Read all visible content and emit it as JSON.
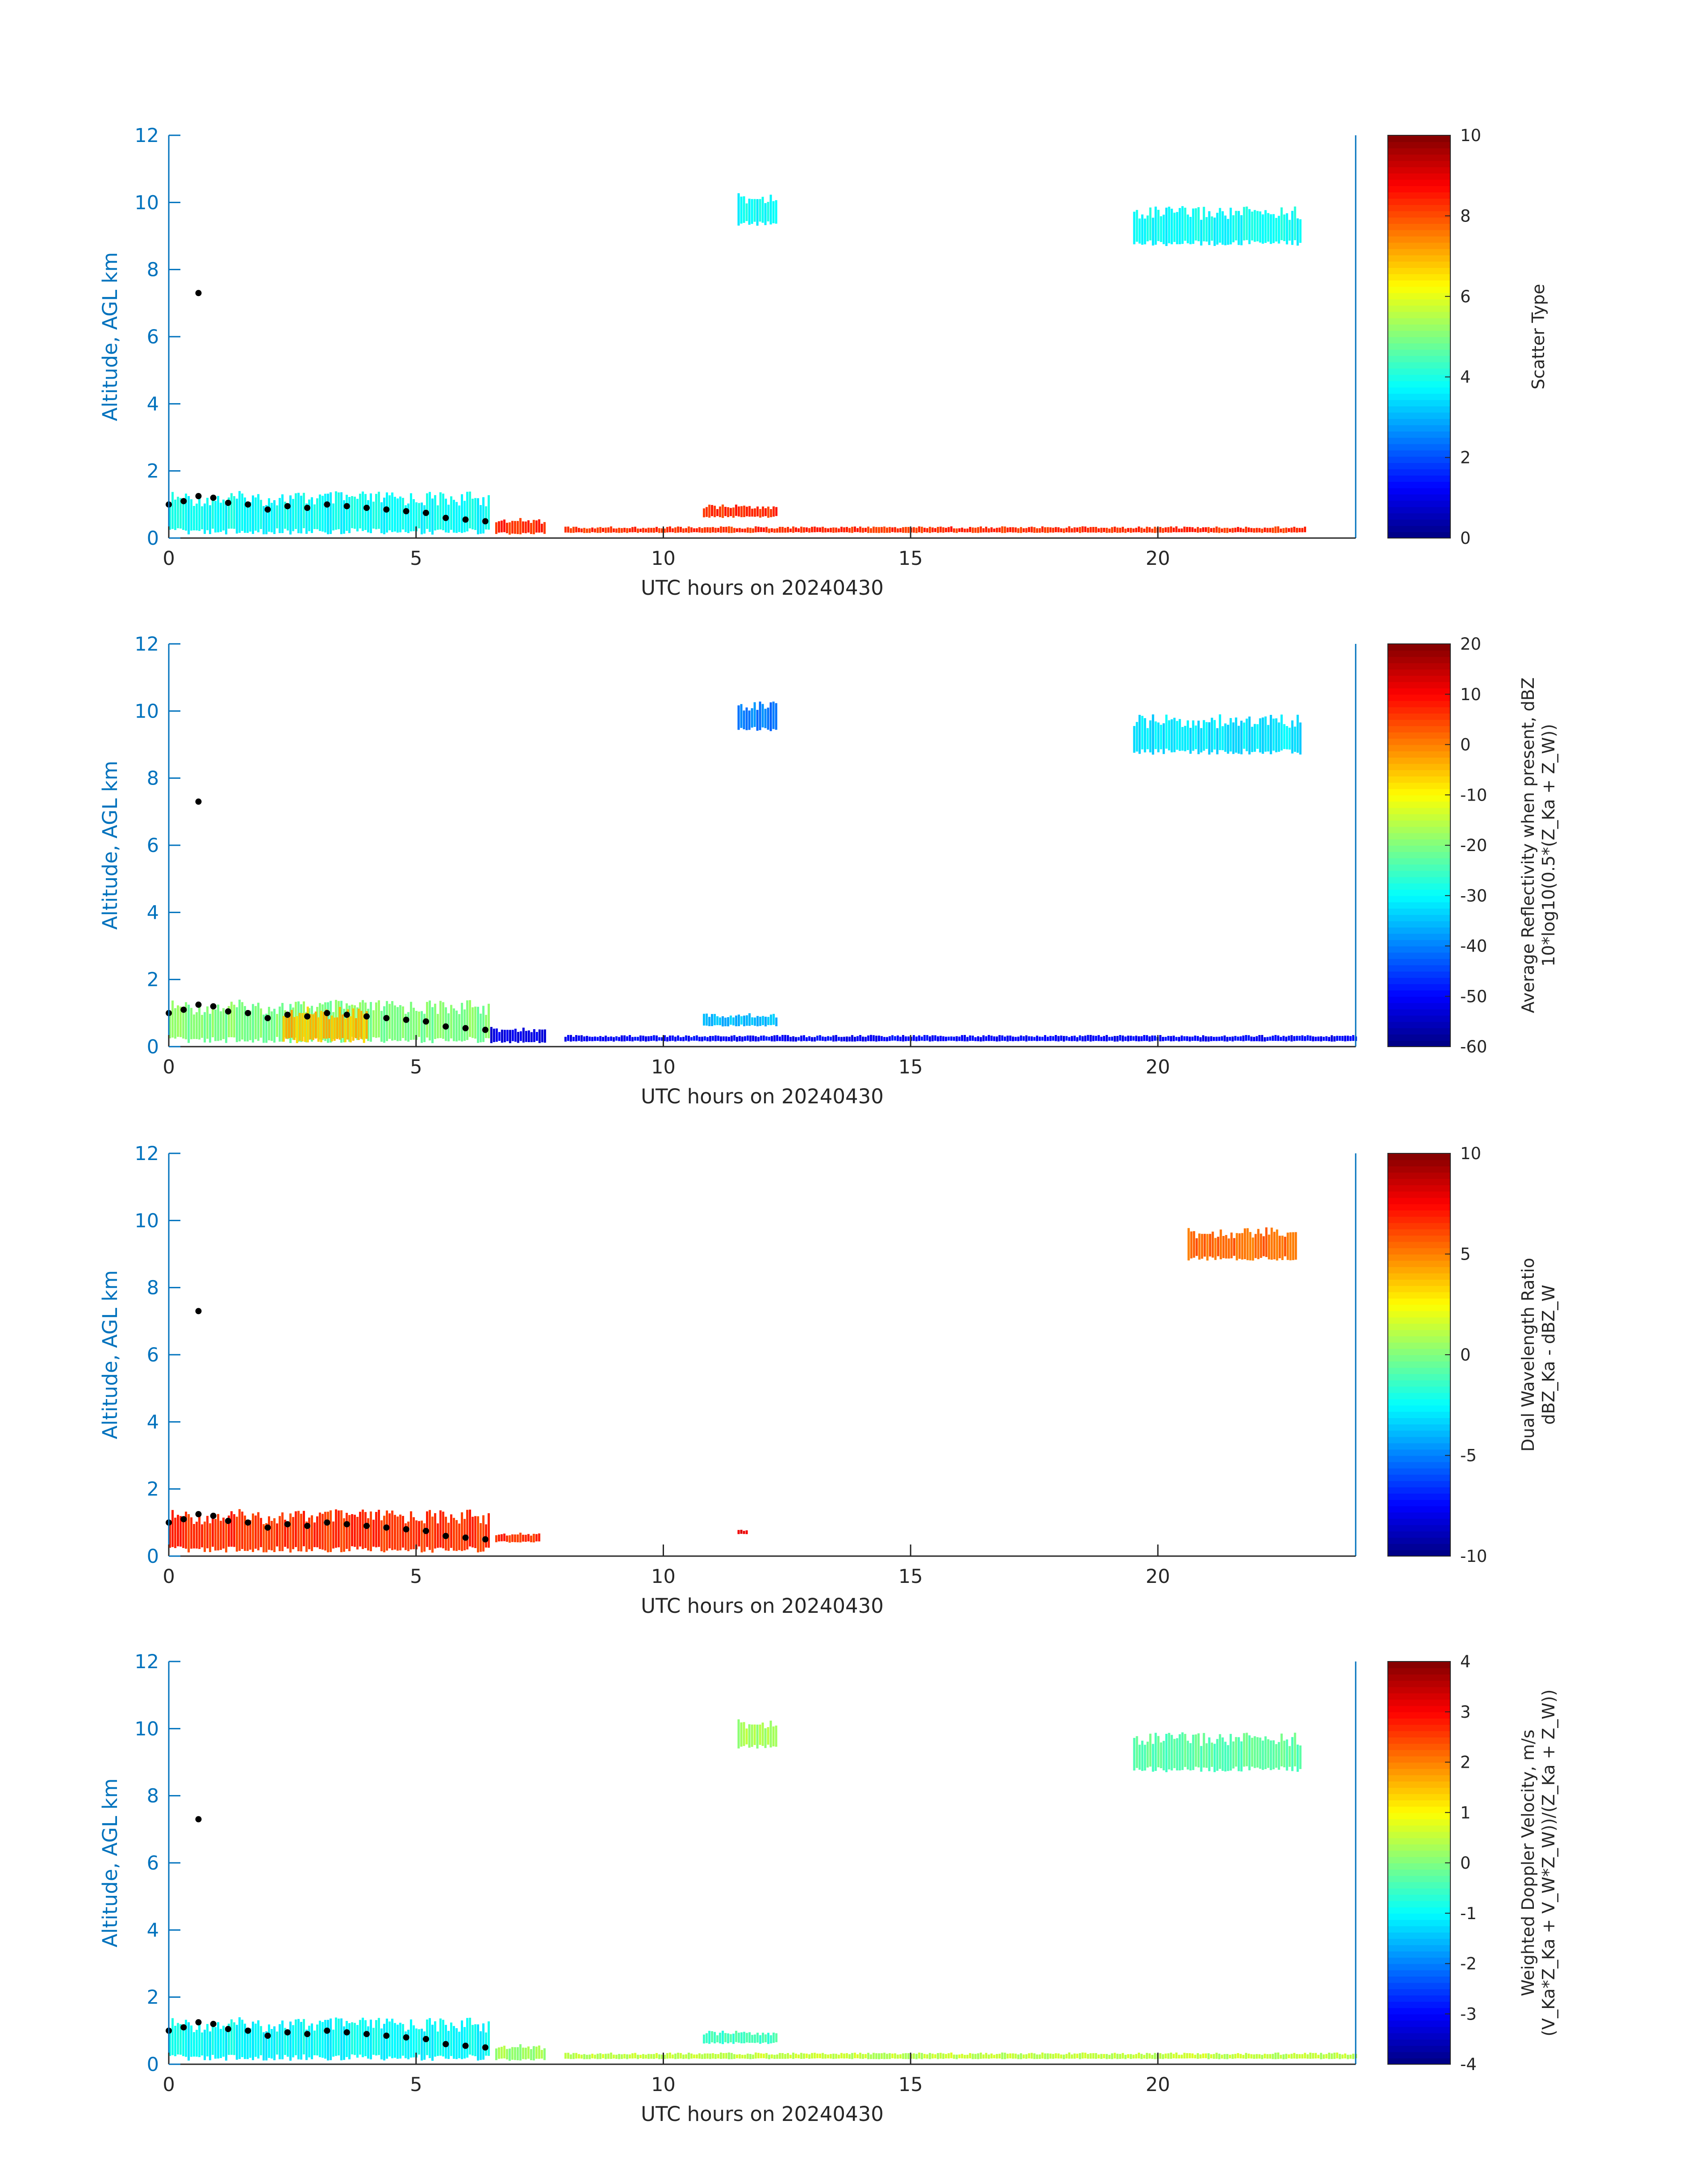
{
  "chart_data": [
    {
      "type": "heatmap",
      "panel": "scatter-type",
      "xlabel": "UTC hours on 20240430",
      "ylabel": "Altitude, AGL km",
      "xlim": [
        0,
        24
      ],
      "ylim": [
        0,
        12
      ],
      "xticks": [
        0,
        5,
        10,
        15,
        20
      ],
      "yticks": [
        0,
        2,
        4,
        6,
        8,
        10,
        12
      ],
      "colorbar": {
        "label": [
          "Scatter Type"
        ],
        "range": [
          0,
          10
        ],
        "ticks": [
          0,
          2,
          4,
          6,
          8,
          10
        ]
      },
      "cloud_top_marker": {
        "x": 0.6,
        "y": 7.3
      },
      "regions": [
        {
          "t0": 0.0,
          "t1": 6.5,
          "z0": 0.1,
          "z1": 1.4,
          "value": 3.8
        },
        {
          "t0": 6.6,
          "t1": 7.6,
          "z0": 0.1,
          "z1": 0.6,
          "value": 8.3
        },
        {
          "t0": 11.5,
          "t1": 12.3,
          "z0": 9.3,
          "z1": 10.3,
          "value": 3.8
        },
        {
          "t0": 19.5,
          "t1": 22.9,
          "z0": 8.7,
          "z1": 9.9,
          "value": 3.8
        },
        {
          "t0": 10.8,
          "t1": 12.3,
          "z0": 0.6,
          "z1": 1.0,
          "value": 8.3
        },
        {
          "t0": 8.0,
          "t1": 23.0,
          "z0": 0.15,
          "z1": 0.35,
          "value": 8.3
        }
      ],
      "bl_top_series": {
        "x": [
          0.0,
          0.3,
          0.6,
          0.9,
          1.2,
          1.6,
          2.0,
          2.4,
          2.8,
          3.2,
          3.6,
          4.0,
          4.4,
          4.8,
          5.2,
          5.6,
          6.0,
          6.4
        ],
        "y": [
          1.0,
          1.1,
          1.25,
          1.2,
          1.05,
          1.0,
          0.85,
          0.95,
          0.9,
          1.0,
          0.95,
          0.9,
          0.85,
          0.8,
          0.75,
          0.6,
          0.55,
          0.5
        ]
      }
    },
    {
      "type": "heatmap",
      "panel": "average-reflectivity",
      "xlabel": "UTC hours on 20240430",
      "ylabel": "Altitude, AGL km",
      "xlim": [
        0,
        24
      ],
      "ylim": [
        0,
        12
      ],
      "xticks": [
        0,
        5,
        10,
        15,
        20
      ],
      "yticks": [
        0,
        2,
        4,
        6,
        8,
        10,
        12
      ],
      "colorbar": {
        "label": [
          "Average Reflectivity when present, dBZ",
          "10*log10(0.5*(Z_Ka + Z_W))"
        ],
        "range": [
          -60,
          20
        ],
        "ticks": [
          -60,
          -50,
          -40,
          -30,
          -20,
          -10,
          0,
          10,
          20
        ]
      },
      "cloud_top_marker": {
        "x": 0.6,
        "y": 7.3
      },
      "regions": [
        {
          "t0": 0.0,
          "t1": 6.5,
          "z0": 0.1,
          "z1": 1.4,
          "value": -20
        },
        {
          "t0": 2.3,
          "t1": 4.0,
          "z0": 0.1,
          "z1": 1.2,
          "value": -5
        },
        {
          "t0": 6.5,
          "t1": 7.6,
          "z0": 0.1,
          "z1": 0.6,
          "value": -52
        },
        {
          "t0": 11.5,
          "t1": 12.3,
          "z0": 9.4,
          "z1": 10.3,
          "value": -40
        },
        {
          "t0": 19.5,
          "t1": 22.9,
          "z0": 8.7,
          "z1": 9.9,
          "value": -32
        },
        {
          "t0": 10.8,
          "t1": 12.3,
          "z0": 0.6,
          "z1": 1.0,
          "value": -35
        },
        {
          "t0": 8.0,
          "t1": 24.0,
          "z0": 0.15,
          "z1": 0.35,
          "value": -50
        }
      ],
      "bl_top_series": {
        "x": [
          0.0,
          0.3,
          0.6,
          0.9,
          1.2,
          1.6,
          2.0,
          2.4,
          2.8,
          3.2,
          3.6,
          4.0,
          4.4,
          4.8,
          5.2,
          5.6,
          6.0,
          6.4
        ],
        "y": [
          1.0,
          1.1,
          1.25,
          1.2,
          1.05,
          1.0,
          0.85,
          0.95,
          0.9,
          1.0,
          0.95,
          0.9,
          0.85,
          0.8,
          0.75,
          0.6,
          0.55,
          0.5
        ]
      }
    },
    {
      "type": "heatmap",
      "panel": "dual-wavelength-ratio",
      "xlabel": "UTC hours on 20240430",
      "ylabel": "Altitude, AGL km",
      "xlim": [
        0,
        24
      ],
      "ylim": [
        0,
        12
      ],
      "xticks": [
        0,
        5,
        10,
        15,
        20
      ],
      "yticks": [
        0,
        2,
        4,
        6,
        8,
        10,
        12
      ],
      "colorbar": {
        "label": [
          "Dual Wavelength Ratio",
          "dBZ_Ka - dBZ_W"
        ],
        "range": [
          -10,
          10
        ],
        "ticks": [
          -10,
          -5,
          0,
          5,
          10
        ]
      },
      "cloud_top_marker": {
        "x": 0.6,
        "y": 7.3
      },
      "regions": [
        {
          "t0": 0.0,
          "t1": 6.5,
          "z0": 0.1,
          "z1": 1.4,
          "value": 6.5
        },
        {
          "t0": 6.6,
          "t1": 7.5,
          "z0": 0.4,
          "z1": 0.7,
          "value": 6.5
        },
        {
          "t0": 20.6,
          "t1": 22.8,
          "z0": 8.8,
          "z1": 9.8,
          "value": 5.5
        },
        {
          "t0": 11.5,
          "t1": 11.7,
          "z0": 0.65,
          "z1": 0.8,
          "value": 8
        }
      ],
      "bl_top_series": {
        "x": [
          0.0,
          0.3,
          0.6,
          0.9,
          1.2,
          1.6,
          2.0,
          2.4,
          2.8,
          3.2,
          3.6,
          4.0,
          4.4,
          4.8,
          5.2,
          5.6,
          6.0,
          6.4
        ],
        "y": [
          1.0,
          1.1,
          1.25,
          1.2,
          1.05,
          1.0,
          0.85,
          0.95,
          0.9,
          1.0,
          0.95,
          0.9,
          0.85,
          0.8,
          0.75,
          0.6,
          0.55,
          0.5
        ]
      }
    },
    {
      "type": "heatmap",
      "panel": "weighted-doppler-velocity",
      "xlabel": "UTC hours on 20240430",
      "ylabel": "Altitude, AGL km",
      "xlim": [
        0,
        24
      ],
      "ylim": [
        0,
        12
      ],
      "xticks": [
        0,
        5,
        10,
        15,
        20
      ],
      "yticks": [
        0,
        2,
        4,
        6,
        8,
        10,
        12
      ],
      "colorbar": {
        "label": [
          "Weighted Doppler Velocity, m/s",
          "(V_Ka*Z_Ka + V_W*Z_W))/(Z_Ka + Z_W))"
        ],
        "range": [
          -4,
          4
        ],
        "ticks": [
          -4,
          -3,
          -2,
          -1,
          0,
          1,
          2,
          3,
          4
        ]
      },
      "cloud_top_marker": {
        "x": 0.6,
        "y": 7.3
      },
      "regions": [
        {
          "t0": 0.0,
          "t1": 6.5,
          "z0": 0.1,
          "z1": 1.4,
          "value": -1.0
        },
        {
          "t0": 6.6,
          "t1": 7.6,
          "z0": 0.1,
          "z1": 0.6,
          "value": 0.2
        },
        {
          "t0": 11.5,
          "t1": 12.3,
          "z0": 9.4,
          "z1": 10.3,
          "value": 0.3
        },
        {
          "t0": 19.5,
          "t1": 22.9,
          "z0": 8.7,
          "z1": 9.9,
          "value": -0.3
        },
        {
          "t0": 10.8,
          "t1": 12.3,
          "z0": 0.6,
          "z1": 1.0,
          "value": -0.5
        },
        {
          "t0": 8.0,
          "t1": 24.0,
          "z0": 0.15,
          "z1": 0.35,
          "value": 0.5
        }
      ],
      "bl_top_series": {
        "x": [
          0.0,
          0.3,
          0.6,
          0.9,
          1.2,
          1.6,
          2.0,
          2.4,
          2.8,
          3.2,
          3.6,
          4.0,
          4.4,
          4.8,
          5.2,
          5.6,
          6.0,
          6.4
        ],
        "y": [
          1.0,
          1.1,
          1.25,
          1.2,
          1.05,
          1.0,
          0.85,
          0.95,
          0.9,
          1.0,
          0.95,
          0.9,
          0.85,
          0.8,
          0.75,
          0.6,
          0.55,
          0.5
        ]
      }
    }
  ],
  "colors": {
    "axis": "#0072bd",
    "text": "#262626",
    "marker": "#000000",
    "colormap": [
      "#000080",
      "#0000ff",
      "#0080ff",
      "#00ffff",
      "#80ff80",
      "#ffff00",
      "#ff8000",
      "#ff0000",
      "#800000"
    ]
  }
}
